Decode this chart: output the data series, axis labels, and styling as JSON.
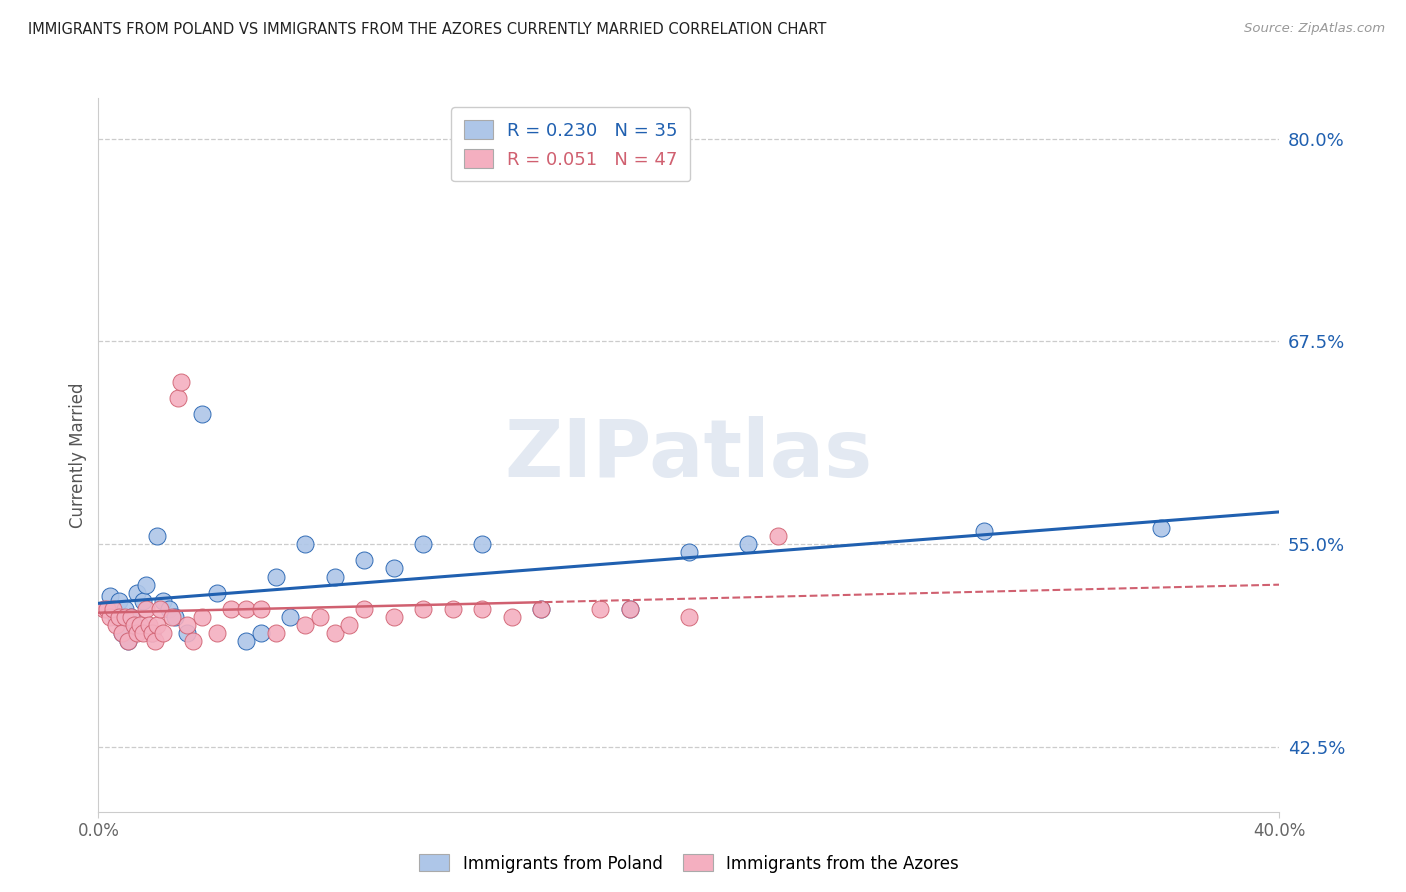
{
  "title": "IMMIGRANTS FROM POLAND VS IMMIGRANTS FROM THE AZORES CURRENTLY MARRIED CORRELATION CHART",
  "source": "Source: ZipAtlas.com",
  "ylabel_label": "Currently Married",
  "y_tick_labels": [
    "80.0%",
    "67.5%",
    "55.0%",
    "42.5%"
  ],
  "y_tick_values": [
    0.8,
    0.675,
    0.55,
    0.425
  ],
  "xlim": [
    0.0,
    0.4
  ],
  "ylim": [
    0.385,
    0.825
  ],
  "legend1_label": "R = 0.230   N = 35",
  "legend2_label": "R = 0.051   N = 47",
  "legend_color1": "#aec6e8",
  "legend_color2": "#f4afc0",
  "scatter_color1": "#aec6e8",
  "scatter_color2": "#f4afc0",
  "line_color1": "#2060b0",
  "line_color2": "#d06070",
  "watermark": "ZIPatlas",
  "poland_x": [
    0.004,
    0.006,
    0.007,
    0.008,
    0.009,
    0.01,
    0.011,
    0.012,
    0.013,
    0.015,
    0.016,
    0.018,
    0.02,
    0.022,
    0.024,
    0.026,
    0.03,
    0.035,
    0.04,
    0.05,
    0.055,
    0.06,
    0.065,
    0.07,
    0.08,
    0.09,
    0.1,
    0.11,
    0.13,
    0.15,
    0.18,
    0.2,
    0.22,
    0.3,
    0.36
  ],
  "poland_y": [
    0.518,
    0.505,
    0.515,
    0.495,
    0.51,
    0.49,
    0.505,
    0.5,
    0.52,
    0.515,
    0.525,
    0.495,
    0.555,
    0.515,
    0.51,
    0.505,
    0.495,
    0.63,
    0.52,
    0.49,
    0.495,
    0.53,
    0.505,
    0.55,
    0.53,
    0.54,
    0.535,
    0.55,
    0.55,
    0.51,
    0.51,
    0.545,
    0.55,
    0.558,
    0.56
  ],
  "azores_x": [
    0.002,
    0.003,
    0.004,
    0.005,
    0.006,
    0.007,
    0.008,
    0.009,
    0.01,
    0.011,
    0.012,
    0.013,
    0.014,
    0.015,
    0.016,
    0.017,
    0.018,
    0.019,
    0.02,
    0.021,
    0.022,
    0.025,
    0.027,
    0.028,
    0.03,
    0.032,
    0.035,
    0.04,
    0.045,
    0.05,
    0.055,
    0.06,
    0.07,
    0.075,
    0.08,
    0.085,
    0.09,
    0.1,
    0.11,
    0.12,
    0.13,
    0.14,
    0.15,
    0.17,
    0.18,
    0.2,
    0.23
  ],
  "azores_y": [
    0.51,
    0.51,
    0.505,
    0.51,
    0.5,
    0.505,
    0.495,
    0.505,
    0.49,
    0.505,
    0.5,
    0.495,
    0.5,
    0.495,
    0.51,
    0.5,
    0.495,
    0.49,
    0.5,
    0.51,
    0.495,
    0.505,
    0.64,
    0.65,
    0.5,
    0.49,
    0.505,
    0.495,
    0.51,
    0.51,
    0.51,
    0.495,
    0.5,
    0.505,
    0.495,
    0.5,
    0.51,
    0.505,
    0.51,
    0.51,
    0.51,
    0.505,
    0.51,
    0.51,
    0.51,
    0.505,
    0.555
  ],
  "grid_color": "#cccccc",
  "spine_color": "#cccccc",
  "ytick_color": "#2060b0",
  "xtick_color": "#666666",
  "bg_color": "#ffffff"
}
